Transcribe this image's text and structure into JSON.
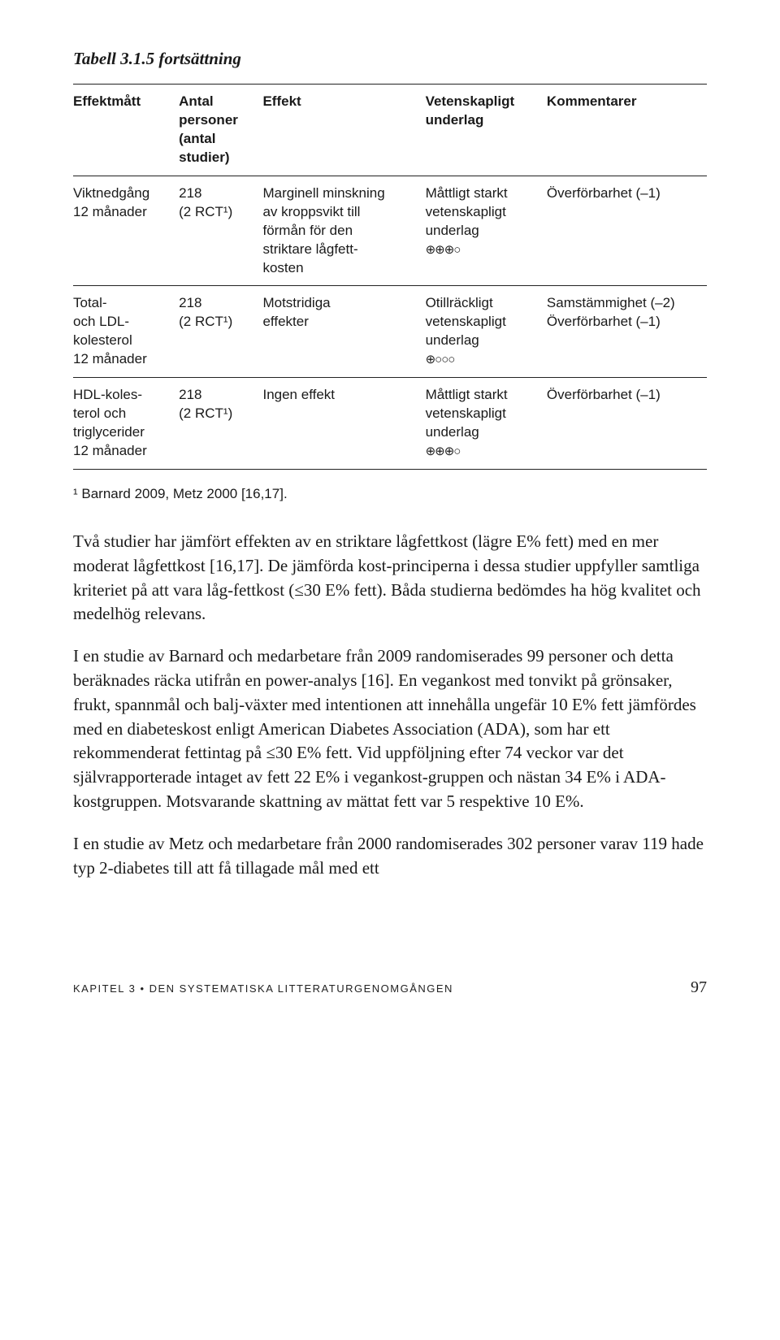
{
  "table": {
    "title": "Tabell 3.1.5 fortsättning",
    "headers": {
      "c0": "Effektmått",
      "c1": "Antal\npersoner\n(antal\nstudier)",
      "c2": "Effekt",
      "c3": "Vetenskapligt\nunderlag",
      "c4": "Kommentarer"
    },
    "rows": [
      {
        "c0": "Viktnedgång\n12 månader",
        "c1": "218\n(2 RCT¹)",
        "c2": "Marginell minskning\nav kroppsvikt till\nförmån för den\nstriktare lågfett-\nkosten",
        "c3": "Måttligt starkt\nvetenskapligt\nunderlag",
        "c3_sym": "⊕⊕⊕○",
        "c4": "Överförbarhet (–1)"
      },
      {
        "c0": "Total-\noch LDL-\nkolesterol\n12 månader",
        "c1": "218\n(2 RCT¹)",
        "c2": "Motstridiga\neffekter",
        "c3": "Otillräckligt\nvetenskapligt\nunderlag",
        "c3_sym": "⊕○○○",
        "c4": "Samstämmighet (–2)\nÖverförbarhet (–1)"
      },
      {
        "c0": "HDL-koles-\nterol och\ntriglycerider\n12 månader",
        "c1": "218\n(2 RCT¹)",
        "c2": "Ingen effekt",
        "c3": "Måttligt starkt\nvetenskapligt\nunderlag",
        "c3_sym": "⊕⊕⊕○",
        "c4": "Överförbarhet (–1)"
      }
    ],
    "footnote": "¹ Barnard 2009, Metz 2000 [16,17]."
  },
  "paragraphs": {
    "p1": "Två studier har jämfört effekten av en striktare lågfettkost (lägre E% fett) med en mer moderat lågfettkost [16,17]. De jämförda kost-principerna i dessa studier uppfyller samtliga kriteriet på att vara låg-fettkost (≤30 E% fett). Båda studierna bedömdes ha hög kvalitet och medelhög relevans.",
    "p2": "I en studie av Barnard och medarbetare från 2009 randomiserades 99 personer och detta beräknades räcka utifrån en power-analys [16]. En vegankost med tonvikt på grönsaker, frukt, spannmål och balj-växter med intentionen att innehålla ungefär 10 E% fett jämfördes med en diabeteskost enligt American Diabetes Association (ADA), som har ett rekommenderat fettintag på ≤30 E% fett. Vid uppföljning efter 74 veckor var det självrapporterade intaget av fett 22 E% i vegankost-gruppen och nästan 34 E% i ADA-kostgruppen. Motsvarande skattning av mättat fett var 5 respektive 10 E%.",
    "p3": "I en studie av Metz och medarbetare från 2000 randomiserades 302 personer varav 119 hade typ 2-diabetes till att få tillagade mål med ett"
  },
  "footer": {
    "chapter": "KAPITEL 3 • DEN SYSTEMATISKA LITTERATURGENOMGÅNGEN",
    "page": "97"
  }
}
